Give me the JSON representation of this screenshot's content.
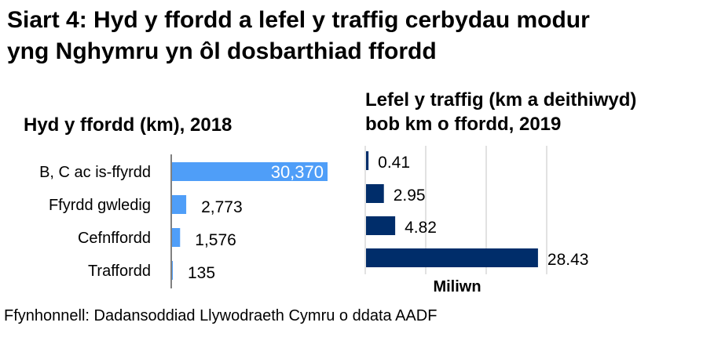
{
  "title_line1": "Siart 4: Hyd y ffordd a lefel y traffig cerbydau modur",
  "title_line2": "yng Nghymru yn ôl dosbarthiad ffordd",
  "source": "Ffynhonnell: Dadansoddiad Llywodraeth Cymru o ddata AADF",
  "chart_data": [
    {
      "type": "bar",
      "orientation": "horizontal",
      "title": "Hyd y ffordd (km), 2018",
      "categories": [
        "B, C ac is-ffyrdd",
        "Ffyrdd gwledig",
        "Cefnffordd",
        "Traffordd"
      ],
      "values": [
        30370,
        2773,
        1576,
        135
      ],
      "data_labels": [
        "30,370",
        "2,773",
        "1,576",
        "135"
      ],
      "color": "#4f9ef8",
      "xlim": [
        0,
        30370
      ],
      "grid": false
    },
    {
      "type": "bar",
      "orientation": "horizontal",
      "title_line1": "Lefel y traffig (km a deithiwyd)",
      "title_line2": "bob km o ffordd, 2019",
      "xlabel": "Miliwn",
      "values": [
        0.41,
        2.95,
        4.82,
        28.43
      ],
      "data_labels": [
        "0.41",
        "2.95",
        "4.82",
        "28.43"
      ],
      "color": "#002d6a",
      "xlim": [
        0,
        30
      ],
      "gridlines": [
        10,
        20,
        30
      ],
      "grid": true
    }
  ]
}
